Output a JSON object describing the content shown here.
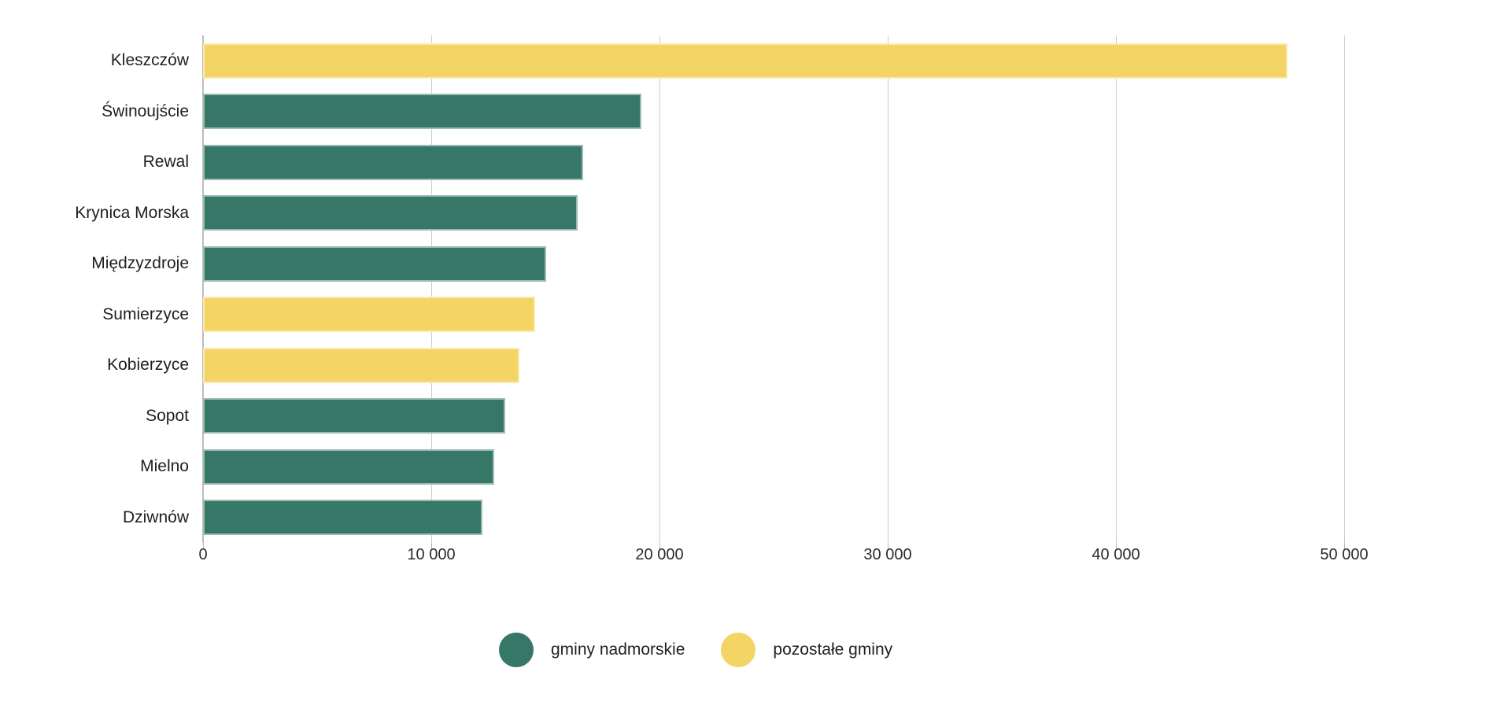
{
  "chart_data": {
    "type": "bar",
    "orientation": "horizontal",
    "title": "",
    "xlabel": "",
    "ylabel": "",
    "categories": [
      "Kleszczów",
      "Świnoujście",
      "Rewal",
      "Krynica Morska",
      "Międzyzdroje",
      "Sumierzyce",
      "Kobierzyce",
      "Sopot",
      "Mielno",
      "Dziwnów"
    ],
    "values": [
      47500,
      19200,
      16650,
      16400,
      15050,
      14550,
      13850,
      13250,
      12750,
      12250
    ],
    "group": [
      "pozostałe gminy",
      "gminy nadmorskie",
      "gminy nadmorskie",
      "gminy nadmorskie",
      "gminy nadmorskie",
      "pozostałe gminy",
      "pozostałe gminy",
      "gminy nadmorskie",
      "gminy nadmorskie",
      "gminy nadmorskie"
    ],
    "colors": {
      "gminy nadmorskie": "#377768",
      "pozostałe gminy": "#f4d464"
    },
    "xlim": [
      0,
      52000
    ],
    "x_tick_values": [
      0,
      10000,
      20000,
      30000,
      40000,
      50000
    ],
    "x_tick_labels": [
      "0",
      "10 000",
      "20 000",
      "30 000",
      "40 000",
      "50 000"
    ],
    "grid": true,
    "legend": {
      "position": "bottom",
      "items": [
        {
          "label": "gminy nadmorskie",
          "color": "#377768"
        },
        {
          "label": "pozostałe gminy",
          "color": "#f4d464"
        }
      ]
    }
  }
}
